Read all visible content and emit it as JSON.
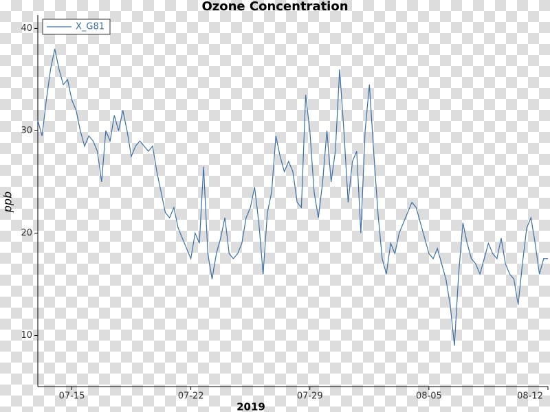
{
  "chart_data": {
    "type": "line",
    "title": "Ozone Concentration",
    "xlabel": "2019",
    "ylabel": "ppb",
    "x": [
      "2019-07-13 00:00",
      "2019-07-13 06:00",
      "2019-07-13 12:00",
      "2019-07-13 18:00",
      "2019-07-14 00:00",
      "2019-07-14 06:00",
      "2019-07-14 12:00",
      "2019-07-14 18:00",
      "2019-07-15 00:00",
      "2019-07-15 06:00",
      "2019-07-15 12:00",
      "2019-07-15 18:00",
      "2019-07-16 00:00",
      "2019-07-16 06:00",
      "2019-07-16 12:00",
      "2019-07-16 18:00",
      "2019-07-17 00:00",
      "2019-07-17 06:00",
      "2019-07-17 12:00",
      "2019-07-17 18:00",
      "2019-07-18 00:00",
      "2019-07-18 06:00",
      "2019-07-18 12:00",
      "2019-07-18 18:00",
      "2019-07-19 00:00",
      "2019-07-19 06:00",
      "2019-07-19 12:00",
      "2019-07-19 18:00",
      "2019-07-20 00:00",
      "2019-07-20 06:00",
      "2019-07-20 12:00",
      "2019-07-20 18:00",
      "2019-07-21 00:00",
      "2019-07-21 06:00",
      "2019-07-21 12:00",
      "2019-07-21 18:00",
      "2019-07-22 00:00",
      "2019-07-22 06:00",
      "2019-07-22 12:00",
      "2019-07-22 18:00",
      "2019-07-23 00:00",
      "2019-07-23 06:00",
      "2019-07-23 12:00",
      "2019-07-23 18:00",
      "2019-07-24 00:00",
      "2019-07-24 06:00",
      "2019-07-24 12:00",
      "2019-07-24 18:00",
      "2019-07-25 00:00",
      "2019-07-25 06:00",
      "2019-07-25 12:00",
      "2019-07-25 18:00",
      "2019-07-26 00:00",
      "2019-07-26 06:00",
      "2019-07-26 12:00",
      "2019-07-26 18:00",
      "2019-07-27 00:00",
      "2019-07-27 06:00",
      "2019-07-27 12:00",
      "2019-07-27 18:00",
      "2019-07-28 00:00",
      "2019-07-28 06:00",
      "2019-07-28 12:00",
      "2019-07-28 18:00",
      "2019-07-29 00:00",
      "2019-07-29 06:00",
      "2019-07-29 12:00",
      "2019-07-29 18:00",
      "2019-07-30 00:00",
      "2019-07-30 06:00",
      "2019-07-30 12:00",
      "2019-07-30 18:00",
      "2019-07-31 00:00",
      "2019-07-31 06:00",
      "2019-07-31 12:00",
      "2019-07-31 18:00",
      "2019-08-01 00:00",
      "2019-08-01 06:00",
      "2019-08-01 12:00",
      "2019-08-01 18:00",
      "2019-08-02 00:00",
      "2019-08-02 06:00",
      "2019-08-02 12:00",
      "2019-08-02 18:00",
      "2019-08-03 00:00",
      "2019-08-03 06:00",
      "2019-08-03 12:00",
      "2019-08-03 18:00",
      "2019-08-04 00:00",
      "2019-08-04 06:00",
      "2019-08-04 12:00",
      "2019-08-04 18:00",
      "2019-08-05 00:00",
      "2019-08-05 06:00",
      "2019-08-05 12:00",
      "2019-08-05 18:00",
      "2019-08-06 00:00",
      "2019-08-06 06:00",
      "2019-08-06 12:00",
      "2019-08-06 18:00",
      "2019-08-07 00:00",
      "2019-08-07 06:00",
      "2019-08-07 12:00",
      "2019-08-07 18:00",
      "2019-08-08 00:00",
      "2019-08-08 06:00",
      "2019-08-08 12:00",
      "2019-08-08 18:00",
      "2019-08-09 00:00",
      "2019-08-09 06:00",
      "2019-08-09 12:00",
      "2019-08-09 18:00",
      "2019-08-10 00:00",
      "2019-08-10 06:00",
      "2019-08-10 12:00",
      "2019-08-10 18:00",
      "2019-08-11 00:00",
      "2019-08-11 06:00",
      "2019-08-11 12:00",
      "2019-08-11 18:00",
      "2019-08-12 00:00"
    ],
    "series": [
      {
        "name": "X_G81",
        "color": "#3a6ea5",
        "values": [
          31,
          29.5,
          33,
          36,
          38,
          36,
          34.5,
          35,
          33,
          32,
          30,
          28.5,
          29.5,
          29,
          28,
          25,
          30,
          29,
          31.5,
          30,
          32,
          30,
          27.5,
          28.5,
          29,
          28.5,
          28,
          28.5,
          26,
          24,
          22,
          21.5,
          22.5,
          20.5,
          19.5,
          18.5,
          17.5,
          20,
          19,
          26.5,
          18,
          15.5,
          18,
          19.5,
          21.5,
          18,
          17.5,
          18,
          19,
          21.5,
          22.5,
          24.5,
          21,
          16,
          22,
          24,
          29.5,
          27.5,
          26,
          27,
          26,
          23,
          22.5,
          33.5,
          30,
          24,
          21.5,
          25,
          30,
          25,
          28,
          36,
          30,
          23,
          27,
          28,
          20,
          30,
          34.5,
          28,
          22,
          17.5,
          16,
          19,
          18,
          20,
          21,
          22,
          23,
          22.5,
          21,
          19.5,
          18,
          17.5,
          18.5,
          17,
          15.5,
          13,
          9,
          16,
          21,
          19,
          17.5,
          17,
          16,
          17.5,
          19,
          18,
          17.5,
          19.5,
          17,
          16,
          15.5,
          13,
          17,
          20.5,
          21.5,
          19,
          16,
          17.5,
          17.5
        ]
      }
    ],
    "xlim": [
      "2019-07-13 00:00",
      "2019-08-12 00:00"
    ],
    "xticks": [
      {
        "value": "2019-07-15 00:00",
        "label": "07-15"
      },
      {
        "value": "2019-07-22 00:00",
        "label": "07-22"
      },
      {
        "value": "2019-07-29 00:00",
        "label": "07-29"
      },
      {
        "value": "2019-08-05 00:00",
        "label": "08-05"
      },
      {
        "value": "2019-08-12 00:00",
        "label": "08-12"
      }
    ],
    "ylim": [
      5,
      41.3
    ],
    "yticks": [
      10,
      20,
      30,
      40
    ],
    "legend": "upper left"
  }
}
